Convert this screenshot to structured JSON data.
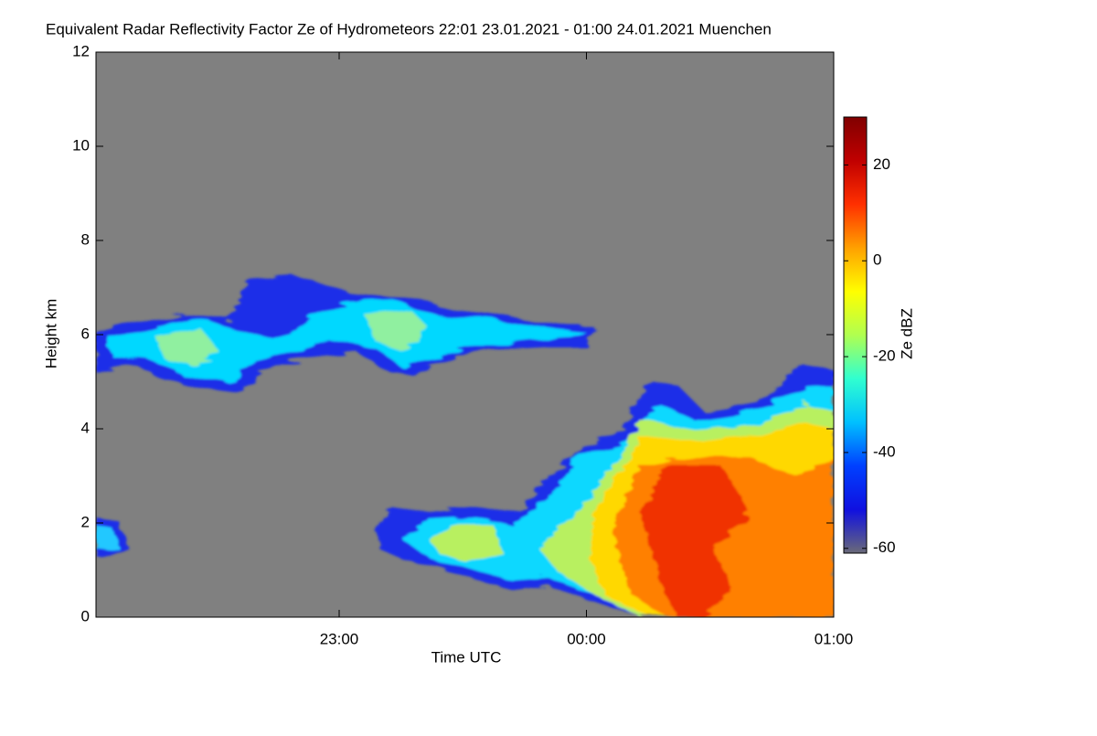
{
  "chart_data": {
    "type": "heatmap",
    "title": "Equivalent Radar Reflectivity Factor Ze of Hydrometeors   22:01 23.01.2021 - 01:00 24.01.2021 Muenchen",
    "x_label": "Time UTC",
    "y_label": "Height km",
    "xlim": [
      22.0167,
      25.0
    ],
    "xticks": [
      {
        "value": 23,
        "label": "23:00"
      },
      {
        "value": 24,
        "label": "00:00"
      },
      {
        "value": 25,
        "label": "01:00"
      }
    ],
    "ylim": [
      0,
      12
    ],
    "yticks": [
      0,
      2,
      4,
      6,
      8,
      10,
      12
    ],
    "background_color": "#808080",
    "colorbar": {
      "label": "Ze dBZ",
      "lim": [
        -61,
        30
      ],
      "ticks": [
        -60,
        -40,
        -20,
        0,
        20
      ],
      "colormap": [
        "#6a6a78",
        "#1010e0",
        "#0040ff",
        "#00c0ff",
        "#30ffd0",
        "#b0ff50",
        "#ffff00",
        "#ffa000",
        "#ff3000",
        "#c00000",
        "#800000"
      ]
    }
  }
}
